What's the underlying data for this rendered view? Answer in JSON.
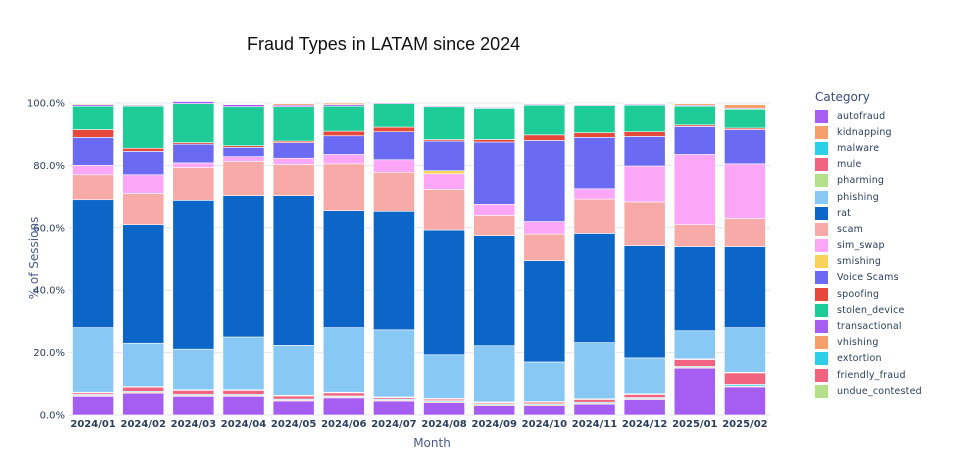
{
  "chart_data": {
    "type": "bar",
    "stacked": true,
    "title": "Fraud Types in LATAM since 2024",
    "xlabel": "Month",
    "ylabel": "% of Sessions",
    "ylim": [
      0,
      100
    ],
    "yticks": [
      "0.0%",
      "20.0%",
      "40.0%",
      "60.0%",
      "80.0%",
      "100.0%"
    ],
    "legend_title": "Category",
    "legend_position": "right",
    "categories": [
      "2024/01",
      "2024/02",
      "2024/03",
      "2024/04",
      "2024/05",
      "2024/06",
      "2024/07",
      "2024/08",
      "2024/09",
      "2024/10",
      "2024/11",
      "2024/12",
      "2025/01",
      "2025/02"
    ],
    "series": [
      {
        "name": "autofraud",
        "color": "#a65ef2",
        "values": [
          6,
          7,
          6,
          6,
          4.5,
          5.5,
          4.5,
          4,
          3,
          3,
          3.5,
          5,
          15,
          9
        ]
      },
      {
        "name": "kidnapping",
        "color": "#f5a06a",
        "values": [
          0.3,
          0.3,
          0.3,
          0.3,
          0.3,
          0.3,
          0.3,
          0.3,
          0.3,
          0.3,
          0.3,
          0.3,
          0.3,
          0.3
        ]
      },
      {
        "name": "malware",
        "color": "#2dcfe8",
        "values": [
          0.3,
          0.3,
          0.3,
          0.3,
          0.3,
          0.3,
          0.3,
          0.3,
          0.3,
          0.3,
          0.3,
          0.3,
          0.3,
          0.5
        ]
      },
      {
        "name": "mule",
        "color": "#f2637f",
        "values": [
          0.5,
          1.3,
          1.3,
          1.3,
          1,
          1,
          0.5,
          0.5,
          0.4,
          0.5,
          0.9,
          1,
          2.2,
          3.7
        ]
      },
      {
        "name": "pharming",
        "color": "#b5e08a",
        "values": [
          0.2,
          0.2,
          0.2,
          0.2,
          0.2,
          0.2,
          0.2,
          0.2,
          0.2,
          0.2,
          0.2,
          0.2,
          0.2,
          0.2
        ]
      },
      {
        "name": "phishing",
        "color": "#87c8f5",
        "values": [
          20.7,
          13.9,
          13,
          16.9,
          16,
          20.7,
          21.5,
          14,
          18,
          12.7,
          18,
          11.5,
          9,
          14.3
        ]
      },
      {
        "name": "rat",
        "color": "#0b66c8",
        "values": [
          41,
          38,
          47.7,
          45.3,
          48,
          37.5,
          38,
          40,
          35.3,
          32.5,
          35,
          36,
          27,
          26
        ]
      },
      {
        "name": "scam",
        "color": "#f7aaa7",
        "values": [
          8,
          10,
          10.5,
          11,
          10,
          15,
          12.5,
          13,
          6.5,
          8.5,
          11,
          14,
          7,
          9
        ]
      },
      {
        "name": "sim_swap",
        "color": "#fca6f8",
        "values": [
          3,
          6,
          1.5,
          1.5,
          2,
          3,
          4,
          5,
          3.5,
          4,
          3.3,
          11.5,
          22.5,
          17.5
        ]
      },
      {
        "name": "smishing",
        "color": "#f9d25a",
        "values": [
          0,
          0,
          0,
          0,
          0,
          0,
          0,
          1,
          0,
          0,
          0,
          0,
          0,
          0
        ]
      },
      {
        "name": "Voice Scams",
        "color": "#6a6af2",
        "values": [
          9,
          7.5,
          6,
          3,
          5,
          6,
          9,
          9.5,
          20,
          26,
          16.5,
          9.5,
          9,
          11
        ]
      },
      {
        "name": "spoofing",
        "color": "#e6483a",
        "values": [
          2.5,
          1,
          0.5,
          0.5,
          0.5,
          1.5,
          1.5,
          0.5,
          0.8,
          1.8,
          1.5,
          1.5,
          0.5,
          0.5
        ]
      },
      {
        "name": "stolen_device",
        "color": "#1dcc97",
        "values": [
          7.5,
          13.5,
          12.5,
          12.5,
          11,
          8,
          7.5,
          10.5,
          10,
          9.5,
          8.7,
          8.5,
          6,
          6
        ]
      },
      {
        "name": "transactional",
        "color": "#a65ef2",
        "values": [
          0.5,
          0.3,
          0.7,
          0.7,
          0.5,
          0.5,
          0.3,
          0.3,
          0.3,
          0.3,
          0.3,
          0.3,
          0.3,
          0.3
        ]
      },
      {
        "name": "vhishing",
        "color": "#f5a06a",
        "values": [
          0.3,
          0.2,
          0.2,
          0.2,
          0.5,
          0.5,
          0.2,
          0.2,
          0.2,
          0.2,
          0.2,
          0.2,
          0.5,
          1.2
        ]
      },
      {
        "name": "extortion",
        "color": "#2dcfe8",
        "values": [
          0.2,
          0.2,
          0.2,
          0.2,
          0.2,
          0.2,
          0.2,
          0.2,
          0.2,
          0.2,
          0.2,
          0.2,
          0.2,
          0.2
        ]
      },
      {
        "name": "friendly_fraud",
        "color": "#f2637f",
        "values": [
          0,
          0,
          0,
          0,
          0,
          0,
          0,
          0,
          0,
          0,
          0,
          0,
          0,
          0
        ]
      },
      {
        "name": "undue_contested",
        "color": "#b5e08a",
        "values": [
          0,
          0,
          0,
          0,
          0,
          0,
          0,
          0,
          0,
          0,
          0,
          0,
          0,
          0
        ]
      }
    ]
  }
}
